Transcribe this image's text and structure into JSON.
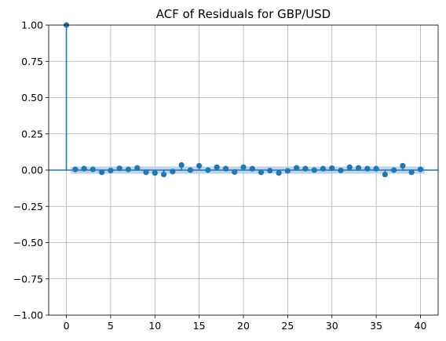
{
  "chart_data": {
    "type": "scatter",
    "title": "ACF of Residuals for GBP/USD",
    "xlabel": "",
    "ylabel": "",
    "xlim": [
      -2,
      42
    ],
    "ylim": [
      -1.0,
      1.0
    ],
    "xticks": [
      0,
      5,
      10,
      15,
      20,
      25,
      30,
      35,
      40
    ],
    "yticks": [
      -1.0,
      -0.75,
      -0.5,
      -0.25,
      0.0,
      0.25,
      0.5,
      0.75,
      1.0
    ],
    "xtick_labels": [
      "0",
      "5",
      "10",
      "15",
      "20",
      "25",
      "30",
      "35",
      "40"
    ],
    "ytick_labels": [
      "−1.00",
      "−0.75",
      "−0.50",
      "−0.25",
      "0.00",
      "0.25",
      "0.50",
      "0.75",
      "1.00"
    ],
    "grid": true,
    "confidence_band": 0.025,
    "lags": [
      0,
      1,
      2,
      3,
      4,
      5,
      6,
      7,
      8,
      9,
      10,
      11,
      12,
      13,
      14,
      15,
      16,
      17,
      18,
      19,
      20,
      21,
      22,
      23,
      24,
      25,
      26,
      27,
      28,
      29,
      30,
      31,
      32,
      33,
      34,
      35,
      36,
      37,
      38,
      39,
      40
    ],
    "values": [
      1.0,
      0.005,
      0.01,
      0.005,
      -0.015,
      -0.003,
      0.012,
      0.005,
      0.015,
      -0.015,
      -0.02,
      -0.03,
      -0.01,
      0.035,
      0.0,
      0.03,
      0.0,
      0.02,
      0.01,
      -0.013,
      0.02,
      0.01,
      -0.015,
      -0.003,
      -0.02,
      -0.005,
      0.015,
      0.01,
      0.0,
      0.01,
      0.013,
      -0.002,
      0.02,
      0.015,
      0.01,
      0.01,
      -0.03,
      0.0,
      0.03,
      -0.015,
      0.005
    ],
    "colors": {
      "marker": "#1f77b4",
      "band": "#a9c6e3",
      "zero_line": "#1f77b4",
      "grid": "#b0b0b0"
    }
  }
}
